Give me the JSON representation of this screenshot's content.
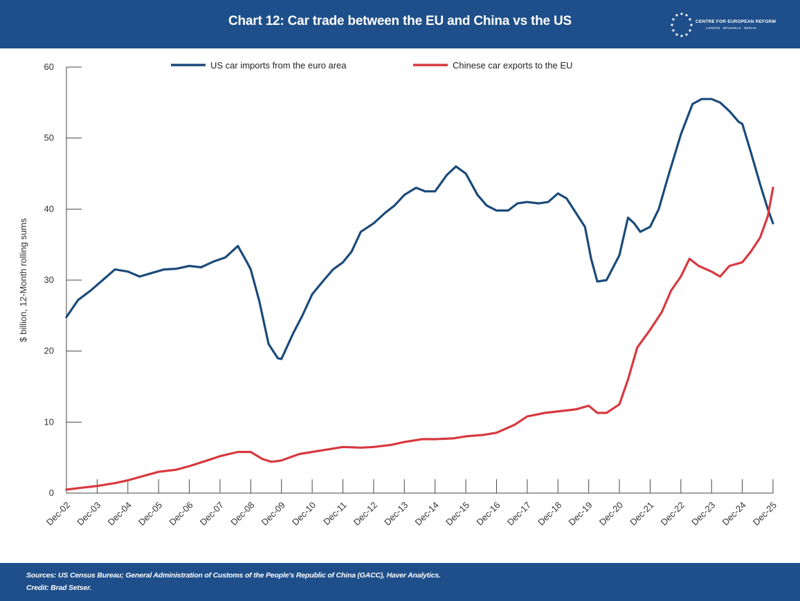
{
  "header": {
    "title": "Chart 12: Car trade between the EU and China vs the US",
    "logo_text": "CENTRE FOR EUROPEAN REFORM",
    "logo_subtext": "LONDON · BRUSSELS · BERLIN"
  },
  "footer": {
    "sources": "Sources: US Census Bureau; General Administration of Customs of the People's Republic of China (GACC), Haver Analytics.",
    "credit": "Credit: Brad Setser."
  },
  "colors": {
    "brand": "#1f4f8a",
    "us_series": "#1b4a7a",
    "china_series": "#d8383f"
  },
  "chart_data": {
    "type": "line",
    "title": "Chart 12: Car trade between the EU and China vs the US",
    "xlabel": "",
    "ylabel": "$ billion, 12-Month rolling sums",
    "ylim": [
      0,
      60
    ],
    "yticks": [
      0,
      10,
      20,
      30,
      40,
      50,
      60
    ],
    "xlim": [
      2002.92,
      2025.92
    ],
    "x_tick_labels": [
      "Dec-02",
      "Dec-03",
      "Dec-04",
      "Dec-05",
      "Dec-06",
      "Dec-07",
      "Dec-08",
      "Dec-09",
      "Dec-10",
      "Dec-11",
      "Dec-12",
      "Dec-13",
      "Dec-14",
      "Dec-15",
      "Dec-16",
      "Dec-17",
      "Dec-18",
      "Dec-19",
      "Dec-20",
      "Dec-21",
      "Dec-22",
      "Dec-23",
      "Dec-24",
      "Dec-25"
    ],
    "legend_position": "top",
    "grid": false,
    "series": [
      {
        "name": "US car imports from the euro area",
        "color": "#1b4a7a",
        "points": [
          [
            2002.92,
            24.8
          ],
          [
            2003.3,
            27.2
          ],
          [
            2003.7,
            28.5
          ],
          [
            2004.1,
            30.0
          ],
          [
            2004.5,
            31.5
          ],
          [
            2004.92,
            31.2
          ],
          [
            2005.3,
            30.5
          ],
          [
            2005.7,
            31.0
          ],
          [
            2006.1,
            31.5
          ],
          [
            2006.5,
            31.6
          ],
          [
            2006.92,
            32.0
          ],
          [
            2007.3,
            31.8
          ],
          [
            2007.7,
            32.6
          ],
          [
            2008.1,
            33.2
          ],
          [
            2008.5,
            34.8
          ],
          [
            2008.8,
            32.5
          ],
          [
            2008.92,
            31.5
          ],
          [
            2009.2,
            27.0
          ],
          [
            2009.5,
            21.0
          ],
          [
            2009.8,
            19.0
          ],
          [
            2009.92,
            18.9
          ],
          [
            2010.3,
            22.5
          ],
          [
            2010.6,
            25.0
          ],
          [
            2010.92,
            28.0
          ],
          [
            2011.3,
            30.0
          ],
          [
            2011.6,
            31.5
          ],
          [
            2011.92,
            32.5
          ],
          [
            2012.2,
            34.0
          ],
          [
            2012.5,
            36.8
          ],
          [
            2012.92,
            38.0
          ],
          [
            2013.3,
            39.5
          ],
          [
            2013.6,
            40.5
          ],
          [
            2013.92,
            42.0
          ],
          [
            2014.3,
            43.0
          ],
          [
            2014.6,
            42.5
          ],
          [
            2014.92,
            42.5
          ],
          [
            2015.3,
            44.8
          ],
          [
            2015.6,
            46.0
          ],
          [
            2015.92,
            45.0
          ],
          [
            2016.3,
            42.0
          ],
          [
            2016.6,
            40.5
          ],
          [
            2016.92,
            39.8
          ],
          [
            2017.3,
            39.8
          ],
          [
            2017.6,
            40.8
          ],
          [
            2017.92,
            41.0
          ],
          [
            2018.3,
            40.8
          ],
          [
            2018.6,
            41.0
          ],
          [
            2018.92,
            42.2
          ],
          [
            2019.2,
            41.5
          ],
          [
            2019.5,
            39.5
          ],
          [
            2019.8,
            37.5
          ],
          [
            2020.0,
            33.0
          ],
          [
            2020.2,
            29.8
          ],
          [
            2020.5,
            30.0
          ],
          [
            2020.92,
            33.5
          ],
          [
            2021.2,
            38.8
          ],
          [
            2021.4,
            38.0
          ],
          [
            2021.6,
            36.8
          ],
          [
            2021.92,
            37.5
          ],
          [
            2022.2,
            40.0
          ],
          [
            2022.5,
            44.5
          ],
          [
            2022.92,
            50.5
          ],
          [
            2023.3,
            54.8
          ],
          [
            2023.6,
            55.5
          ],
          [
            2023.92,
            55.5
          ],
          [
            2024.2,
            55.0
          ],
          [
            2024.5,
            53.8
          ],
          [
            2024.8,
            52.3
          ],
          [
            2024.92,
            52.0
          ],
          [
            2025.2,
            48.0
          ],
          [
            2025.5,
            43.5
          ],
          [
            2025.75,
            40.0
          ],
          [
            2025.92,
            38.0
          ]
        ]
      },
      {
        "name": "Chinese car exports to the EU",
        "color": "#d8383f",
        "points": [
          [
            2002.92,
            0.5
          ],
          [
            2003.5,
            0.8
          ],
          [
            2003.92,
            1.0
          ],
          [
            2004.5,
            1.4
          ],
          [
            2004.92,
            1.8
          ],
          [
            2005.5,
            2.5
          ],
          [
            2005.92,
            3.0
          ],
          [
            2006.5,
            3.3
          ],
          [
            2006.92,
            3.8
          ],
          [
            2007.5,
            4.6
          ],
          [
            2007.92,
            5.2
          ],
          [
            2008.5,
            5.8
          ],
          [
            2008.92,
            5.8
          ],
          [
            2009.3,
            4.8
          ],
          [
            2009.6,
            4.4
          ],
          [
            2009.92,
            4.6
          ],
          [
            2010.5,
            5.5
          ],
          [
            2010.92,
            5.8
          ],
          [
            2011.5,
            6.2
          ],
          [
            2011.92,
            6.5
          ],
          [
            2012.5,
            6.4
          ],
          [
            2012.92,
            6.5
          ],
          [
            2013.5,
            6.8
          ],
          [
            2013.92,
            7.2
          ],
          [
            2014.5,
            7.6
          ],
          [
            2014.92,
            7.6
          ],
          [
            2015.5,
            7.7
          ],
          [
            2015.92,
            8.0
          ],
          [
            2016.5,
            8.2
          ],
          [
            2016.92,
            8.5
          ],
          [
            2017.5,
            9.6
          ],
          [
            2017.92,
            10.8
          ],
          [
            2018.5,
            11.3
          ],
          [
            2018.92,
            11.5
          ],
          [
            2019.5,
            11.8
          ],
          [
            2019.92,
            12.3
          ],
          [
            2020.2,
            11.3
          ],
          [
            2020.5,
            11.3
          ],
          [
            2020.92,
            12.5
          ],
          [
            2021.2,
            16.0
          ],
          [
            2021.5,
            20.5
          ],
          [
            2021.92,
            23.0
          ],
          [
            2022.3,
            25.5
          ],
          [
            2022.6,
            28.5
          ],
          [
            2022.92,
            30.5
          ],
          [
            2023.2,
            33.0
          ],
          [
            2023.5,
            32.0
          ],
          [
            2023.92,
            31.2
          ],
          [
            2024.2,
            30.5
          ],
          [
            2024.5,
            32.0
          ],
          [
            2024.92,
            32.5
          ],
          [
            2025.2,
            34.0
          ],
          [
            2025.5,
            36.0
          ],
          [
            2025.75,
            39.0
          ],
          [
            2025.92,
            43.0
          ]
        ]
      }
    ]
  }
}
